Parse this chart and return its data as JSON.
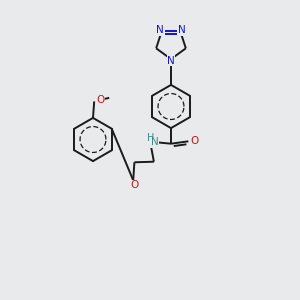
{
  "bg_color": "#e8eaec",
  "bond_color": "#1a1a1a",
  "N_color": "#1414cc",
  "O_color": "#cc1414",
  "N_amide_color": "#3a8a8a",
  "bond_width": 1.4,
  "fig_size": [
    3.0,
    3.0
  ],
  "dpi": 100,
  "xlim": [
    0,
    10
  ],
  "ylim": [
    0,
    10
  ],
  "font_size": 7.5
}
